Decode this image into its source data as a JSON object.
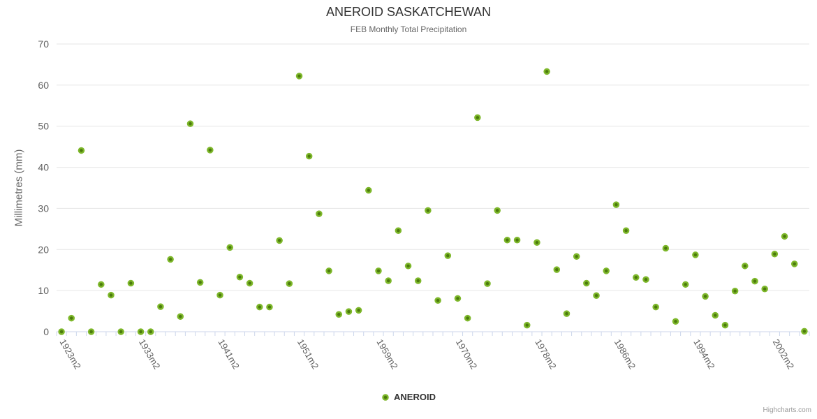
{
  "chart_data": {
    "type": "scatter",
    "title": "ANEROID SASKATCHEWAN",
    "subtitle": "FEB Monthly Total Precipitation",
    "ylabel": "Millimetres (mm)",
    "xlabel": "",
    "ylim": [
      0,
      70
    ],
    "yticks": [
      0,
      10,
      20,
      30,
      40,
      50,
      60,
      70
    ],
    "grid": true,
    "legend_position": "bottom-center",
    "series_name": "ANEROID",
    "marker": {
      "fill": "#4b7a0c",
      "stroke": "#7db72a",
      "radius": 3.5,
      "stroke_width": 2.5
    },
    "x_tick_labels": [
      {
        "index": 0,
        "label": "1923m2"
      },
      {
        "index": 8,
        "label": "1933m2"
      },
      {
        "index": 16,
        "label": "1941m2"
      },
      {
        "index": 24,
        "label": "1951m2"
      },
      {
        "index": 32,
        "label": "1959m2"
      },
      {
        "index": 40,
        "label": "1970m2"
      },
      {
        "index": 48,
        "label": "1978m2"
      },
      {
        "index": 56,
        "label": "1986m2"
      },
      {
        "index": 64,
        "label": "1994m2"
      },
      {
        "index": 72,
        "label": "2002m2"
      }
    ],
    "values": [
      0,
      3.3,
      44.1,
      0,
      11.5,
      8.9,
      0,
      11.8,
      0,
      0,
      6.1,
      17.6,
      3.7,
      50.6,
      12.0,
      44.2,
      8.9,
      20.5,
      13.3,
      11.8,
      6.0,
      6.0,
      22.2,
      11.7,
      62.2,
      42.7,
      28.7,
      14.8,
      4.2,
      4.9,
      5.2,
      34.4,
      14.8,
      12.4,
      24.6,
      16.0,
      12.4,
      29.5,
      7.6,
      18.5,
      8.1,
      3.3,
      52.1,
      11.7,
      29.5,
      22.3,
      22.3,
      1.6,
      21.7,
      63.3,
      15.1,
      4.4,
      18.3,
      11.8,
      8.8,
      14.8,
      30.9,
      24.6,
      13.2,
      12.7,
      6.0,
      20.3,
      2.5,
      11.5,
      18.7,
      8.6,
      4.0,
      1.6,
      9.9,
      16.0,
      12.3,
      10.4,
      18.9,
      23.2,
      16.5,
      0.1
    ]
  },
  "credits": {
    "text": "Highcharts.com"
  },
  "colors": {
    "axis_line": "#ccd6eb",
    "gridline": "#e6e6e6",
    "title_text": "#333333",
    "subtitle_text": "#666666",
    "axis_label_text": "#606060",
    "legend_text": "#333333",
    "credits_text": "#999999"
  }
}
